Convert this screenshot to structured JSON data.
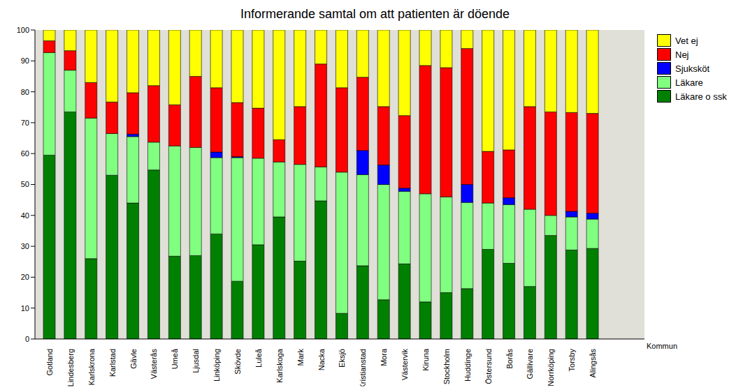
{
  "chart_data": {
    "type": "bar",
    "title": "Informerande samtal om att patienten är döende",
    "x_label": "Kommun",
    "stacked": true,
    "grid": false,
    "legend": "right",
    "categories": [
      "Gotland",
      "Lindesberg",
      "Karlskrona",
      "Karlstad",
      "Gävle",
      "Västerås",
      "Umeå",
      "Ljusdal",
      "Linköping",
      "Skövde",
      "Luleå",
      "Karlskoga",
      "Mark",
      "Nacka",
      "Eksjö",
      "Kristianstad",
      "Mora",
      "Västervik",
      "Kiruna",
      "Stockholm",
      "Huddinge",
      "Östersund",
      "Borås",
      "Gällivare",
      "Norrköping",
      "Torsby",
      "Alingsås"
    ],
    "series": [
      {
        "name": "Läkare o ssk",
        "color": "#008000",
        "values": [
          59.5,
          73.5,
          26,
          53,
          44,
          54.7,
          26.8,
          27,
          34,
          18.7,
          30.5,
          39.5,
          25.2,
          44.7,
          8.3,
          23.7,
          12.7,
          24.3,
          12,
          15,
          16.3,
          29,
          24.5,
          17,
          33.5,
          28.8,
          29.3
        ]
      },
      {
        "name": "Läkare",
        "color": "#80ff80",
        "values": [
          33.2,
          13.5,
          45.5,
          13.5,
          21.5,
          9,
          35.7,
          35,
          24.7,
          40,
          28,
          17.8,
          31.3,
          11,
          45.7,
          29.5,
          37.3,
          23.5,
          35,
          31,
          27.9,
          15,
          19,
          25,
          6.5,
          10.7,
          9.5
        ]
      },
      {
        "name": "Sjuksköt",
        "color": "#0000ff",
        "values": [
          0,
          0,
          0,
          0,
          0.8,
          0,
          0,
          0,
          1.8,
          0.3,
          0,
          0,
          0,
          0,
          0,
          7.8,
          6.3,
          1,
          0,
          0,
          5.8,
          0,
          2.2,
          0,
          0,
          1.8,
          1.9
        ]
      },
      {
        "name": "Nej",
        "color": "#ff0000",
        "values": [
          3.8,
          6.3,
          11.5,
          10.2,
          13.4,
          18.3,
          13.3,
          23,
          20.8,
          17.5,
          16.2,
          7.2,
          18.7,
          33.3,
          27.3,
          23.7,
          18.9,
          23.5,
          41.5,
          41.8,
          44,
          16.7,
          15.5,
          33.2,
          33.5,
          32,
          32.3
        ]
      },
      {
        "name": "Vet ej",
        "color": "#ffff00",
        "values": [
          3.5,
          6.7,
          17,
          23.3,
          20.3,
          18,
          24.2,
          15,
          18.7,
          23.5,
          25.3,
          35.5,
          24.8,
          11,
          18.7,
          15.3,
          24.8,
          27.7,
          11.5,
          12.2,
          6,
          39.3,
          38.8,
          24.8,
          26.5,
          26.7,
          27
        ]
      }
    ],
    "ylim": [
      0,
      100
    ],
    "yticks": [
      0,
      10,
      20,
      30,
      40,
      50,
      60,
      70,
      80,
      90,
      100
    ]
  }
}
